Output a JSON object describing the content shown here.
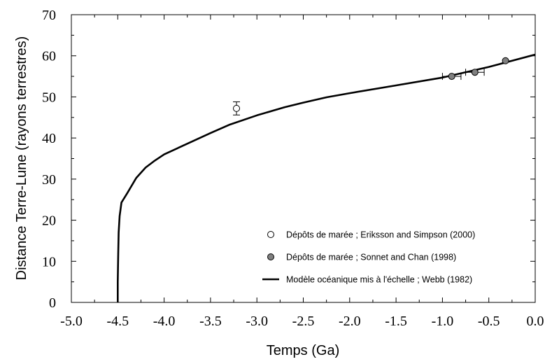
{
  "chart_data": {
    "type": "line",
    "xlabel": "Temps (Ga)",
    "ylabel": "Distance Terre-Lune (rayons terrestres)",
    "xlim": [
      -5.0,
      0.0
    ],
    "ylim": [
      0,
      70
    ],
    "x_ticks": [
      -5.0,
      -4.5,
      -4.0,
      -3.5,
      -3.0,
      -2.5,
      -2.0,
      -1.5,
      -1.0,
      -0.5,
      0.0
    ],
    "x_tick_labels": [
      "-5.0",
      "-4.5",
      "-4.0",
      "-3.5",
      "-3.0",
      "-2.5",
      "-2.0",
      "-1.5",
      "-1.0",
      "-0.5",
      "0.0"
    ],
    "y_ticks": [
      0,
      10,
      20,
      30,
      40,
      50,
      60,
      70
    ],
    "y_tick_labels": [
      "0",
      "10",
      "20",
      "30",
      "40",
      "50",
      "60",
      "70"
    ],
    "grid": false,
    "legend_position": "bottom-right",
    "series": [
      {
        "name": "Dépôts de marée ; Eriksson and Simpson (2000)",
        "kind": "scatter",
        "marker": "open-circle",
        "color": "#ffffff",
        "points": [
          {
            "x": -3.22,
            "y": 47.2,
            "y_err": 1.6
          }
        ]
      },
      {
        "name": "Dépôts de marée ; Sonnet and Chan (1998)",
        "kind": "scatter",
        "marker": "filled-circle",
        "color": "#808080",
        "points": [
          {
            "x": -0.9,
            "y": 55.0,
            "x_err": 0.1
          },
          {
            "x": -0.65,
            "y": 56.0,
            "x_err": 0.1
          },
          {
            "x": -0.32,
            "y": 58.8
          }
        ]
      },
      {
        "name": "Modèle océanique mis à l'échelle ; Webb (1982)",
        "kind": "line",
        "color": "#000000",
        "x": [
          -4.5,
          -4.5,
          -4.495,
          -4.49,
          -4.48,
          -4.46,
          -4.4,
          -4.3,
          -4.2,
          -4.1,
          -4.0,
          -3.8,
          -3.5,
          -3.3,
          -3.0,
          -2.7,
          -2.5,
          -2.25,
          -2.0,
          -1.5,
          -1.0,
          -0.5,
          0.0
        ],
        "y": [
          0,
          5,
          12,
          17,
          21,
          24.3,
          26.5,
          30.3,
          32.8,
          34.5,
          36.0,
          38.1,
          41.2,
          43.2,
          45.5,
          47.5,
          48.6,
          49.9,
          50.9,
          52.8,
          54.7,
          57.3,
          60.3
        ]
      }
    ]
  }
}
